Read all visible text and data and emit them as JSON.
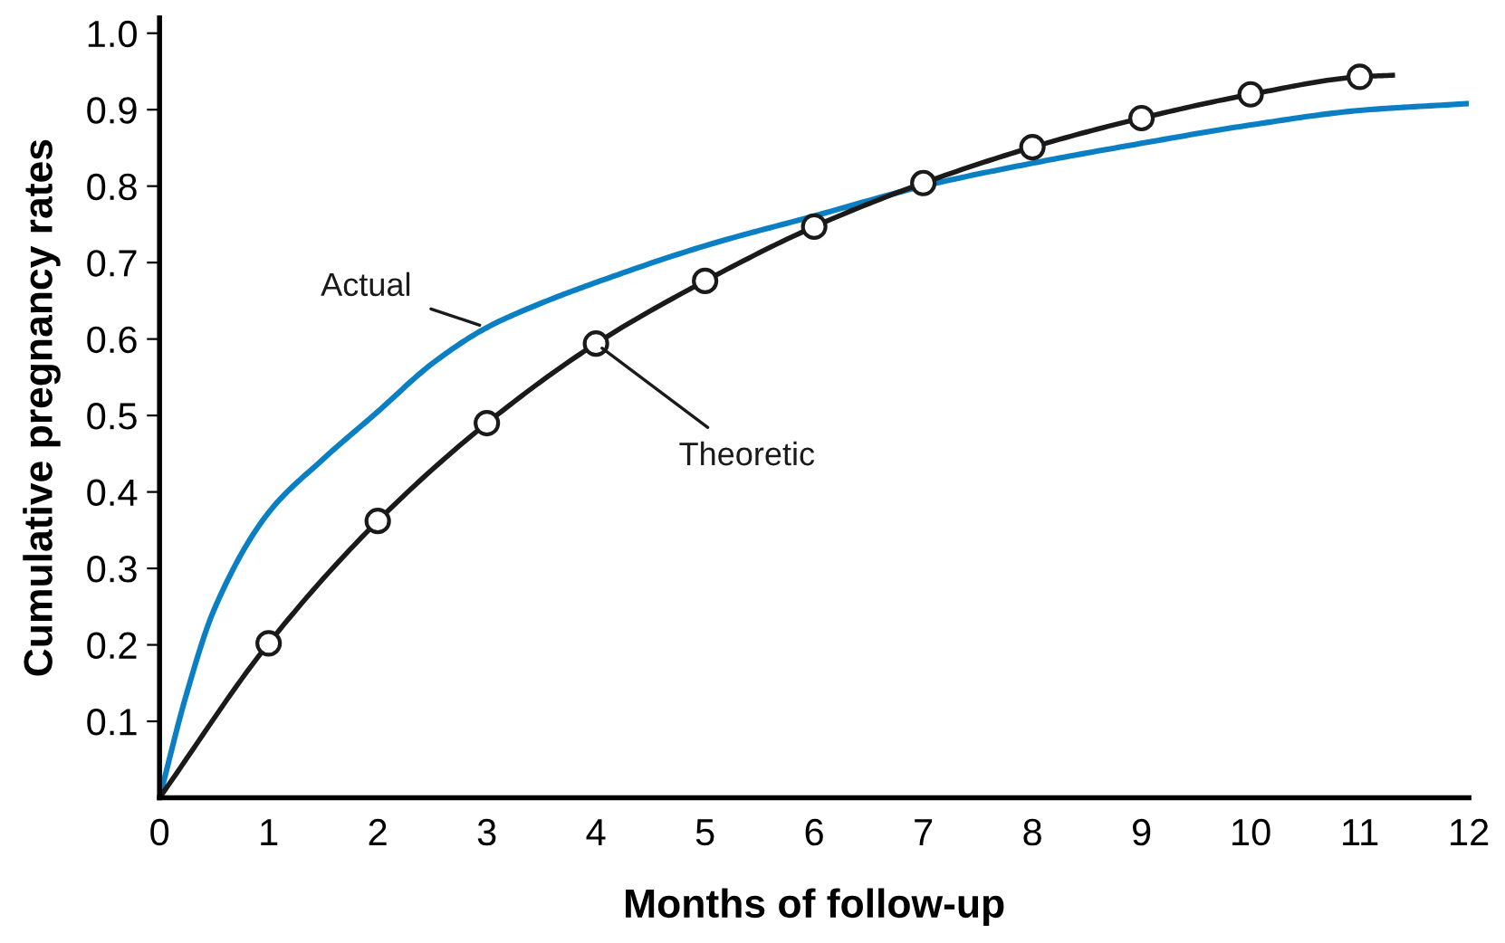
{
  "chart_data": {
    "type": "line",
    "xlabel": "Months of follow-up",
    "ylabel": "Cumulative pregnancy rates",
    "xlim": [
      0,
      12
    ],
    "ylim": [
      0,
      1.02
    ],
    "xticks": [
      0,
      1,
      2,
      3,
      4,
      5,
      6,
      7,
      8,
      9,
      10,
      11,
      12
    ],
    "yticks": [
      0.1,
      0.2,
      0.3,
      0.4,
      0.5,
      0.6,
      0.7,
      0.8,
      0.9,
      {
        "value": 1,
        "label": "1.0"
      }
    ],
    "grid": false,
    "series": [
      {
        "name": "Actual",
        "color": "#0a7fc4",
        "marker": "none",
        "x": [
          0,
          0.25,
          0.5,
          1,
          1.5,
          2,
          2.5,
          3,
          3.5,
          4,
          5,
          6,
          7,
          8,
          9,
          10,
          11,
          12
        ],
        "values": [
          0,
          0.137,
          0.246,
          0.373,
          0.443,
          0.505,
          0.568,
          0.615,
          0.647,
          0.674,
          0.722,
          0.761,
          0.8,
          0.83,
          0.856,
          0.88,
          0.899,
          0.908
        ]
      },
      {
        "name": "Theoretic",
        "color": "#1a1a1a",
        "marker": "circle",
        "x": [
          0,
          1,
          2,
          3,
          4,
          5,
          6,
          7,
          8,
          9,
          10,
          11,
          11.3
        ],
        "values": [
          0,
          0.202,
          0.362,
          0.49,
          0.594,
          0.676,
          0.747,
          0.804,
          0.851,
          0.889,
          0.92,
          0.943,
          0.945
        ]
      }
    ]
  }
}
